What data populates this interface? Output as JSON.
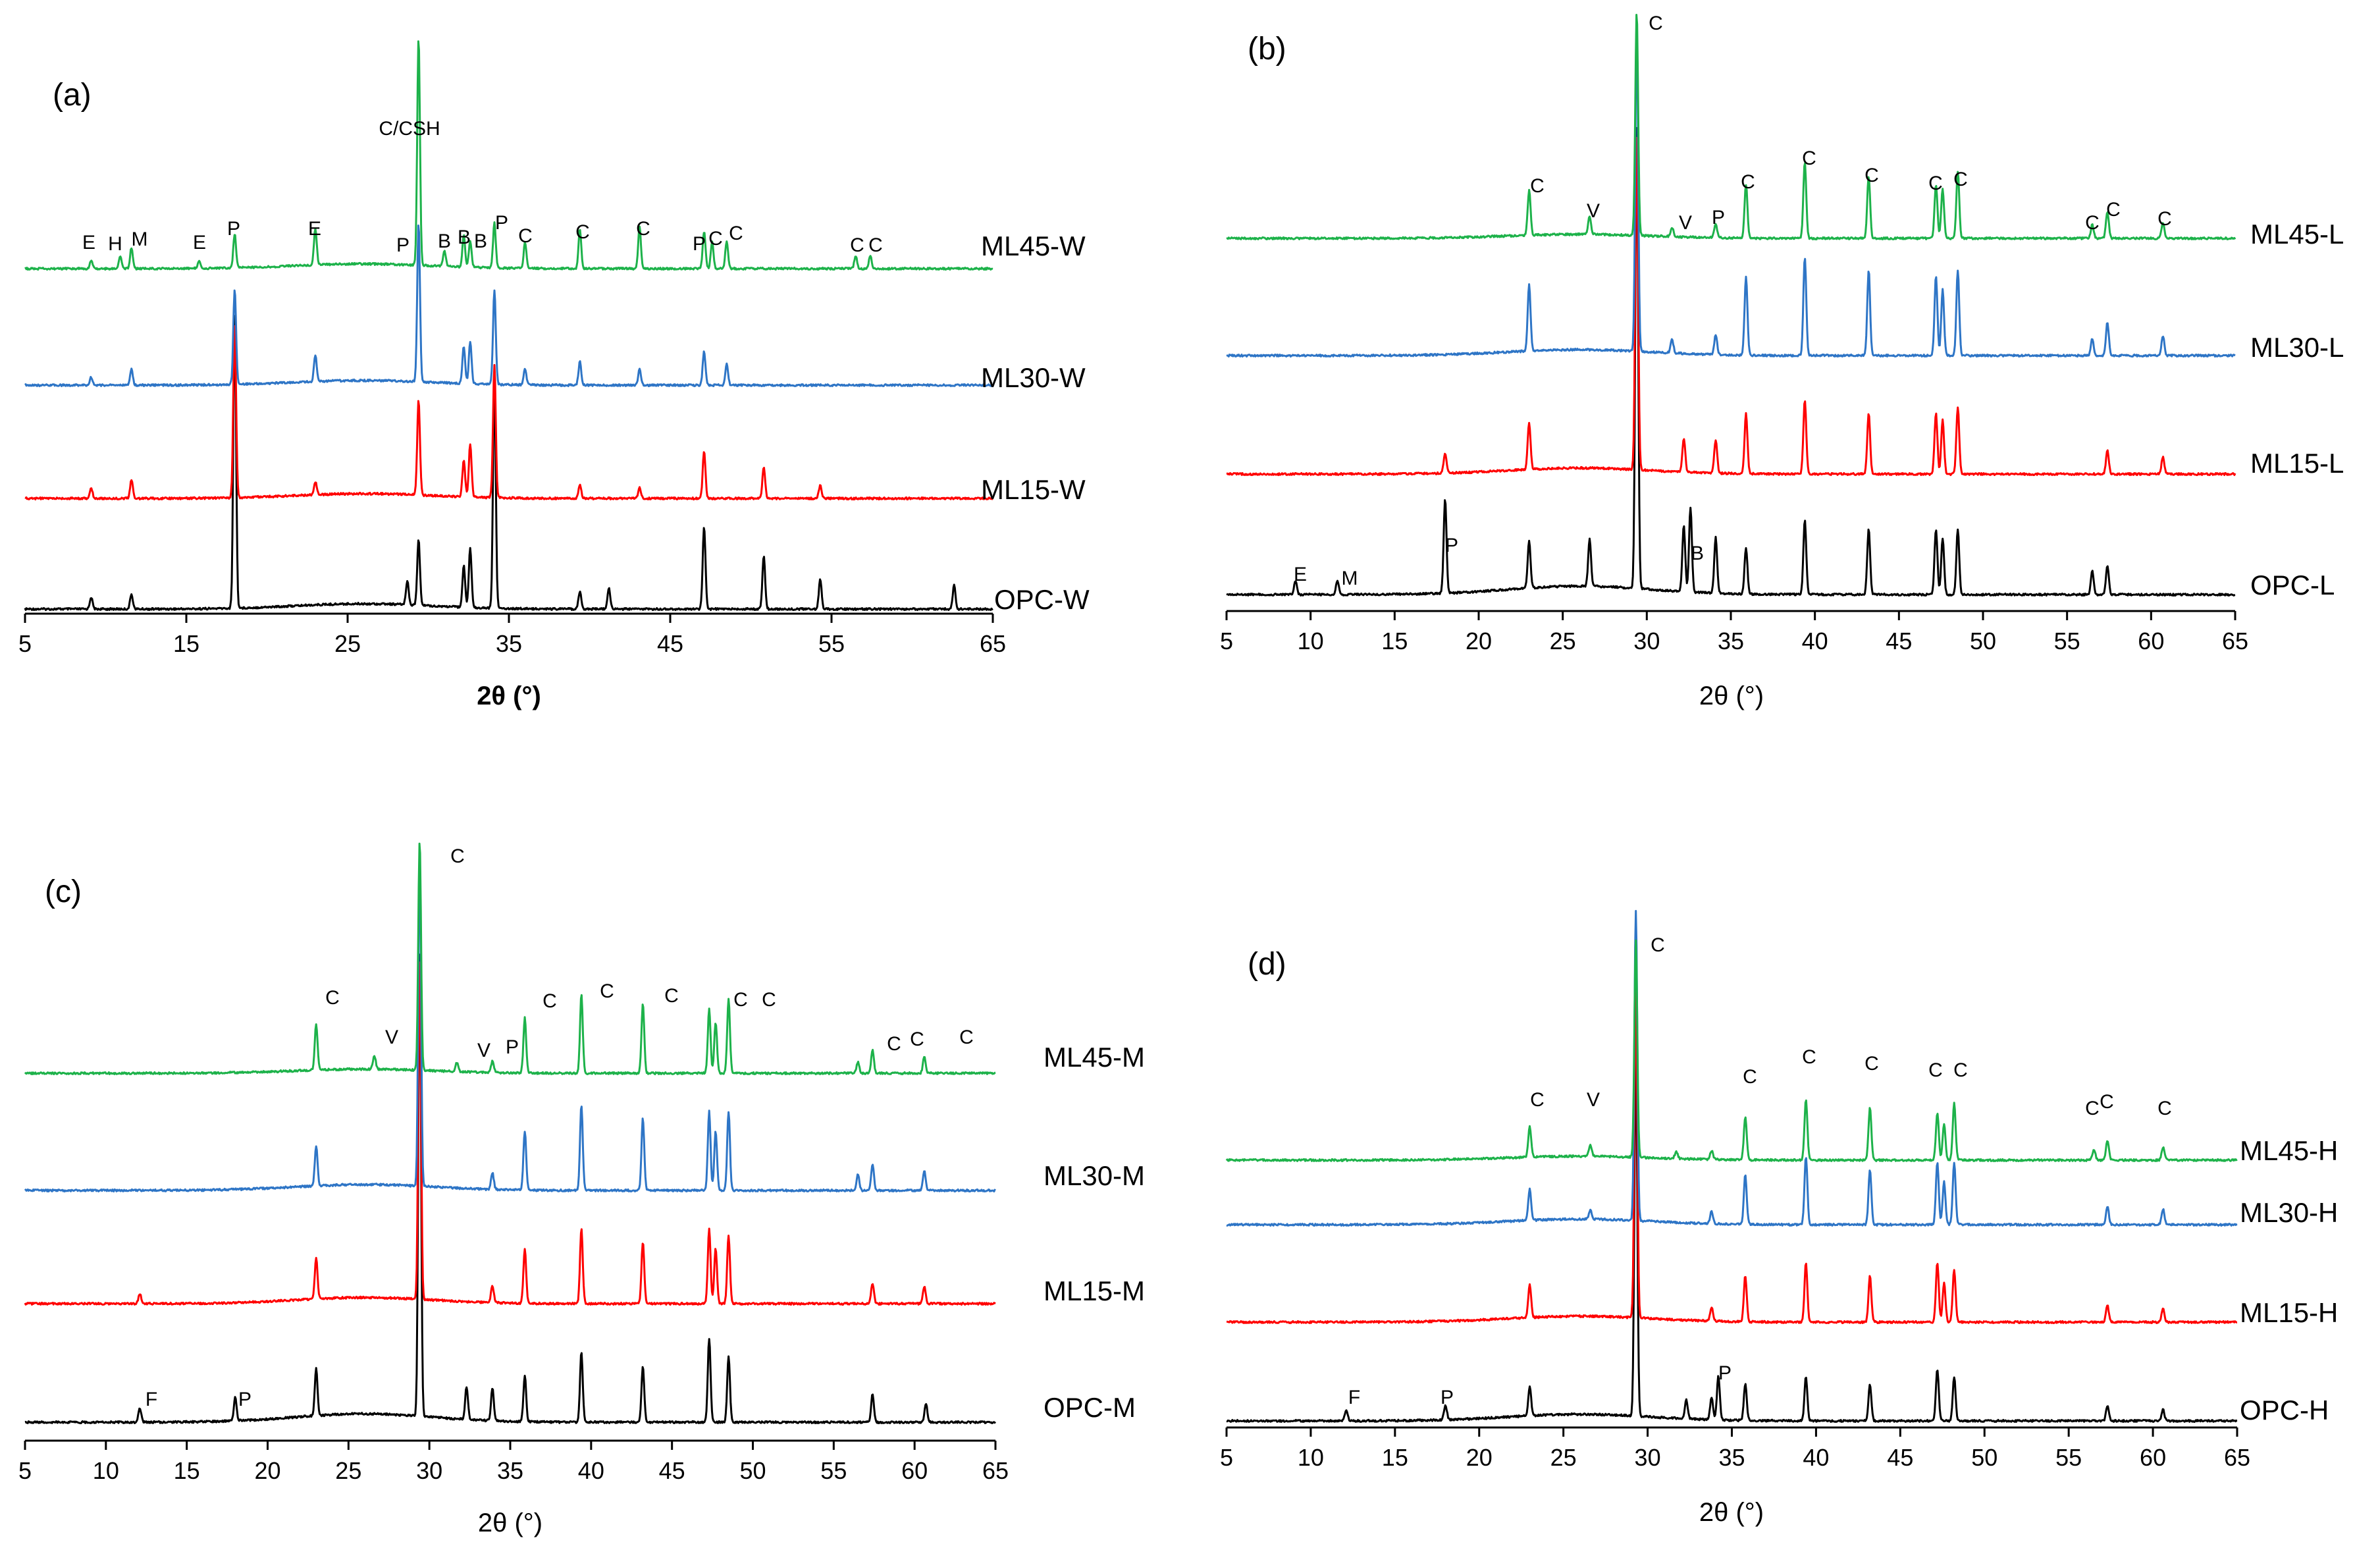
{
  "colors": {
    "black": "#000000",
    "red": "#ff0000",
    "blue": "#2e75c6",
    "green": "#1db24a"
  },
  "chart_data": [
    {
      "panel": "(a)",
      "type": "line",
      "xlabel": "2θ (°)",
      "xlim": [
        5,
        65
      ],
      "xticks": [
        5,
        15,
        25,
        35,
        45,
        55,
        65
      ],
      "series": [
        {
          "name": "OPC-W",
          "color": "black",
          "peaks": [
            [
              18.0,
              1.0
            ],
            [
              29.4,
              0.22
            ],
            [
              32.2,
              0.14
            ],
            [
              32.6,
              0.2
            ],
            [
              34.1,
              0.78
            ],
            [
              47.1,
              0.28
            ],
            [
              50.8,
              0.18
            ],
            [
              54.3,
              0.1
            ],
            [
              62.6,
              0.08
            ],
            [
              9.1,
              0.04
            ],
            [
              11.6,
              0.05
            ],
            [
              28.7,
              0.08
            ],
            [
              39.4,
              0.06
            ],
            [
              41.2,
              0.07
            ]
          ]
        },
        {
          "name": "ML15-W",
          "color": "red",
          "peaks": [
            [
              18.0,
              0.66
            ],
            [
              29.4,
              0.36
            ],
            [
              32.2,
              0.14
            ],
            [
              32.6,
              0.2
            ],
            [
              34.1,
              0.5
            ],
            [
              47.1,
              0.18
            ],
            [
              50.8,
              0.12
            ],
            [
              11.6,
              0.07
            ],
            [
              9.1,
              0.04
            ],
            [
              23.0,
              0.05
            ],
            [
              39.4,
              0.05
            ],
            [
              43.1,
              0.04
            ],
            [
              54.3,
              0.05
            ]
          ]
        },
        {
          "name": "ML30-W",
          "color": "blue",
          "peaks": [
            [
              18.0,
              0.36
            ],
            [
              23.0,
              0.1
            ],
            [
              29.4,
              0.6
            ],
            [
              32.2,
              0.14
            ],
            [
              32.6,
              0.16
            ],
            [
              34.1,
              0.36
            ],
            [
              36.0,
              0.06
            ],
            [
              39.4,
              0.09
            ],
            [
              43.1,
              0.06
            ],
            [
              47.1,
              0.13
            ],
            [
              48.5,
              0.08
            ],
            [
              11.6,
              0.06
            ],
            [
              9.1,
              0.03
            ]
          ]
        },
        {
          "name": "ML45-W",
          "color": "green",
          "peaks": [
            [
              9.1,
              0.03
            ],
            [
              10.9,
              0.05
            ],
            [
              11.6,
              0.08
            ],
            [
              15.8,
              0.03
            ],
            [
              18.0,
              0.13
            ],
            [
              23.0,
              0.14
            ],
            [
              29.4,
              0.86
            ],
            [
              31.0,
              0.06
            ],
            [
              32.2,
              0.12
            ],
            [
              32.6,
              0.1
            ],
            [
              34.1,
              0.17
            ],
            [
              36.0,
              0.1
            ],
            [
              39.4,
              0.15
            ],
            [
              43.1,
              0.16
            ],
            [
              47.1,
              0.14
            ],
            [
              47.6,
              0.1
            ],
            [
              48.5,
              0.1
            ],
            [
              56.5,
              0.05
            ],
            [
              57.4,
              0.05
            ]
          ]
        }
      ],
      "annotations": [
        "E",
        "H",
        "M",
        "E",
        "P",
        "E",
        "C/CSH",
        "P",
        "B",
        "B",
        "B",
        "P",
        "C",
        "C",
        "C",
        "P",
        "C",
        "C",
        "C",
        "C"
      ]
    },
    {
      "panel": "(b)",
      "type": "line",
      "xlabel": "2θ (°)",
      "xlim": [
        5,
        65
      ],
      "xticks": [
        5,
        10,
        15,
        20,
        25,
        30,
        35,
        40,
        45,
        50,
        55,
        60,
        65
      ],
      "series": [
        {
          "name": "OPC-L",
          "color": "black",
          "peaks": [
            [
              9.1,
              0.03
            ],
            [
              11.6,
              0.03
            ],
            [
              18.0,
              0.2
            ],
            [
              23.0,
              0.1
            ],
            [
              26.6,
              0.1
            ],
            [
              29.4,
              1.0
            ],
            [
              32.2,
              0.14
            ],
            [
              32.6,
              0.18
            ],
            [
              34.1,
              0.12
            ],
            [
              35.9,
              0.1
            ],
            [
              39.4,
              0.16
            ],
            [
              43.2,
              0.14
            ],
            [
              47.2,
              0.14
            ],
            [
              47.6,
              0.12
            ],
            [
              48.5,
              0.14
            ],
            [
              56.5,
              0.05
            ],
            [
              57.4,
              0.06
            ]
          ]
        },
        {
          "name": "ML15-L",
          "color": "red",
          "peaks": [
            [
              18.0,
              0.06
            ],
            [
              23.0,
              0.14
            ],
            [
              29.4,
              1.0
            ],
            [
              32.2,
              0.1
            ],
            [
              34.1,
              0.1
            ],
            [
              35.9,
              0.18
            ],
            [
              39.4,
              0.22
            ],
            [
              43.2,
              0.18
            ],
            [
              47.2,
              0.18
            ],
            [
              47.6,
              0.16
            ],
            [
              48.5,
              0.2
            ],
            [
              57.4,
              0.07
            ],
            [
              60.7,
              0.05
            ]
          ]
        },
        {
          "name": "ML30-L",
          "color": "blue",
          "peaks": [
            [
              23.0,
              0.2
            ],
            [
              29.4,
              1.0
            ],
            [
              31.5,
              0.04
            ],
            [
              34.1,
              0.06
            ],
            [
              35.9,
              0.24
            ],
            [
              39.4,
              0.3
            ],
            [
              43.2,
              0.26
            ],
            [
              47.2,
              0.24
            ],
            [
              47.6,
              0.2
            ],
            [
              48.5,
              0.26
            ],
            [
              56.5,
              0.05
            ],
            [
              57.4,
              0.1
            ],
            [
              60.7,
              0.06
            ]
          ]
        },
        {
          "name": "ML45-L",
          "color": "green",
          "peaks": [
            [
              23.0,
              0.2
            ],
            [
              26.6,
              0.08
            ],
            [
              29.4,
              1.0
            ],
            [
              31.5,
              0.04
            ],
            [
              34.1,
              0.06
            ],
            [
              35.9,
              0.24
            ],
            [
              39.4,
              0.34
            ],
            [
              43.2,
              0.28
            ],
            [
              47.2,
              0.24
            ],
            [
              47.6,
              0.22
            ],
            [
              48.5,
              0.3
            ],
            [
              56.5,
              0.06
            ],
            [
              57.4,
              0.12
            ],
            [
              60.7,
              0.07
            ]
          ]
        }
      ],
      "annotations": [
        "C",
        "C",
        "V",
        "V",
        "P",
        "C",
        "C",
        "C",
        "C",
        "C",
        "C",
        "C",
        "C",
        "E",
        "M",
        "P",
        "B"
      ]
    },
    {
      "panel": "(c)",
      "type": "line",
      "xlabel": "2θ (°)",
      "xlim": [
        5,
        65
      ],
      "xticks": [
        5,
        10,
        15,
        20,
        25,
        30,
        35,
        40,
        45,
        50,
        55,
        60,
        65
      ],
      "series": [
        {
          "name": "OPC-M",
          "color": "black",
          "peaks": [
            [
              12.1,
              0.03
            ],
            [
              18.0,
              0.05
            ],
            [
              23.0,
              0.1
            ],
            [
              29.4,
              1.0
            ],
            [
              32.3,
              0.07
            ],
            [
              33.9,
              0.07
            ],
            [
              35.9,
              0.1
            ],
            [
              39.4,
              0.15
            ],
            [
              43.2,
              0.12
            ],
            [
              47.3,
              0.18
            ],
            [
              48.5,
              0.14
            ],
            [
              57.4,
              0.06
            ],
            [
              60.7,
              0.04
            ]
          ]
        },
        {
          "name": "ML15-M",
          "color": "red",
          "peaks": [
            [
              12.1,
              0.03
            ],
            [
              23.0,
              0.12
            ],
            [
              29.4,
              1.0
            ],
            [
              33.9,
              0.05
            ],
            [
              35.9,
              0.16
            ],
            [
              39.4,
              0.22
            ],
            [
              43.2,
              0.18
            ],
            [
              47.3,
              0.22
            ],
            [
              47.7,
              0.16
            ],
            [
              48.5,
              0.2
            ],
            [
              57.4,
              0.06
            ],
            [
              60.6,
              0.05
            ]
          ]
        },
        {
          "name": "ML30-M",
          "color": "blue",
          "peaks": [
            [
              23.0,
              0.12
            ],
            [
              29.4,
              1.0
            ],
            [
              33.9,
              0.05
            ],
            [
              35.9,
              0.18
            ],
            [
              39.4,
              0.26
            ],
            [
              43.2,
              0.22
            ],
            [
              47.3,
              0.24
            ],
            [
              47.7,
              0.18
            ],
            [
              48.5,
              0.24
            ],
            [
              56.5,
              0.05
            ],
            [
              57.4,
              0.08
            ],
            [
              60.6,
              0.06
            ]
          ]
        },
        {
          "name": "ML45-M",
          "color": "green",
          "peaks": [
            [
              23.0,
              0.2
            ],
            [
              26.6,
              0.06
            ],
            [
              29.4,
              1.0
            ],
            [
              31.7,
              0.04
            ],
            [
              33.9,
              0.05
            ],
            [
              35.9,
              0.24
            ],
            [
              39.4,
              0.34
            ],
            [
              43.2,
              0.3
            ],
            [
              47.3,
              0.28
            ],
            [
              47.7,
              0.22
            ],
            [
              48.5,
              0.32
            ],
            [
              56.5,
              0.05
            ],
            [
              57.4,
              0.1
            ],
            [
              60.6,
              0.07
            ]
          ]
        }
      ],
      "annotations": [
        "C",
        "C",
        "V",
        "V",
        "P",
        "C",
        "C",
        "C",
        "C",
        "C",
        "C",
        "C",
        "C",
        "F",
        "P"
      ]
    },
    {
      "panel": "(d)",
      "type": "line",
      "xlabel": "2θ (°)",
      "xlim": [
        5,
        65
      ],
      "xticks": [
        5,
        10,
        15,
        20,
        25,
        30,
        35,
        40,
        45,
        50,
        55,
        60,
        65
      ],
      "series": [
        {
          "name": "OPC-H",
          "color": "black",
          "peaks": [
            [
              12.1,
              0.03
            ],
            [
              18.0,
              0.04
            ],
            [
              23.0,
              0.08
            ],
            [
              29.3,
              1.0
            ],
            [
              32.3,
              0.05
            ],
            [
              33.8,
              0.06
            ],
            [
              34.2,
              0.12
            ],
            [
              35.8,
              0.1
            ],
            [
              39.4,
              0.12
            ],
            [
              43.2,
              0.1
            ],
            [
              47.2,
              0.14
            ],
            [
              48.2,
              0.12
            ],
            [
              57.3,
              0.04
            ],
            [
              60.6,
              0.03
            ]
          ]
        },
        {
          "name": "ML15-H",
          "color": "red",
          "peaks": [
            [
              23.0,
              0.1
            ],
            [
              29.3,
              1.0
            ],
            [
              33.8,
              0.04
            ],
            [
              35.8,
              0.14
            ],
            [
              39.4,
              0.18
            ],
            [
              43.2,
              0.14
            ],
            [
              47.2,
              0.18
            ],
            [
              47.6,
              0.12
            ],
            [
              48.2,
              0.16
            ],
            [
              57.3,
              0.05
            ],
            [
              60.6,
              0.04
            ]
          ]
        },
        {
          "name": "ML30-H",
          "color": "blue",
          "peaks": [
            [
              23.0,
              0.1
            ],
            [
              26.6,
              0.03
            ],
            [
              29.3,
              1.0
            ],
            [
              33.8,
              0.04
            ],
            [
              35.8,
              0.16
            ],
            [
              39.4,
              0.22
            ],
            [
              43.2,
              0.18
            ],
            [
              47.2,
              0.2
            ],
            [
              47.6,
              0.14
            ],
            [
              48.2,
              0.2
            ],
            [
              57.3,
              0.06
            ],
            [
              60.6,
              0.05
            ]
          ]
        },
        {
          "name": "ML45-H",
          "color": "green",
          "peaks": [
            [
              23.0,
              0.14
            ],
            [
              26.6,
              0.05
            ],
            [
              29.3,
              1.0
            ],
            [
              31.7,
              0.03
            ],
            [
              33.8,
              0.04
            ],
            [
              35.8,
              0.2
            ],
            [
              39.4,
              0.28
            ],
            [
              43.2,
              0.24
            ],
            [
              47.2,
              0.22
            ],
            [
              47.6,
              0.17
            ],
            [
              48.2,
              0.26
            ],
            [
              56.5,
              0.05
            ],
            [
              57.3,
              0.09
            ],
            [
              60.6,
              0.06
            ]
          ]
        }
      ],
      "annotations": [
        "C",
        "C",
        "V",
        "C",
        "C",
        "C",
        "C",
        "C",
        "C",
        "C",
        "C",
        "F",
        "P",
        "P"
      ]
    }
  ]
}
